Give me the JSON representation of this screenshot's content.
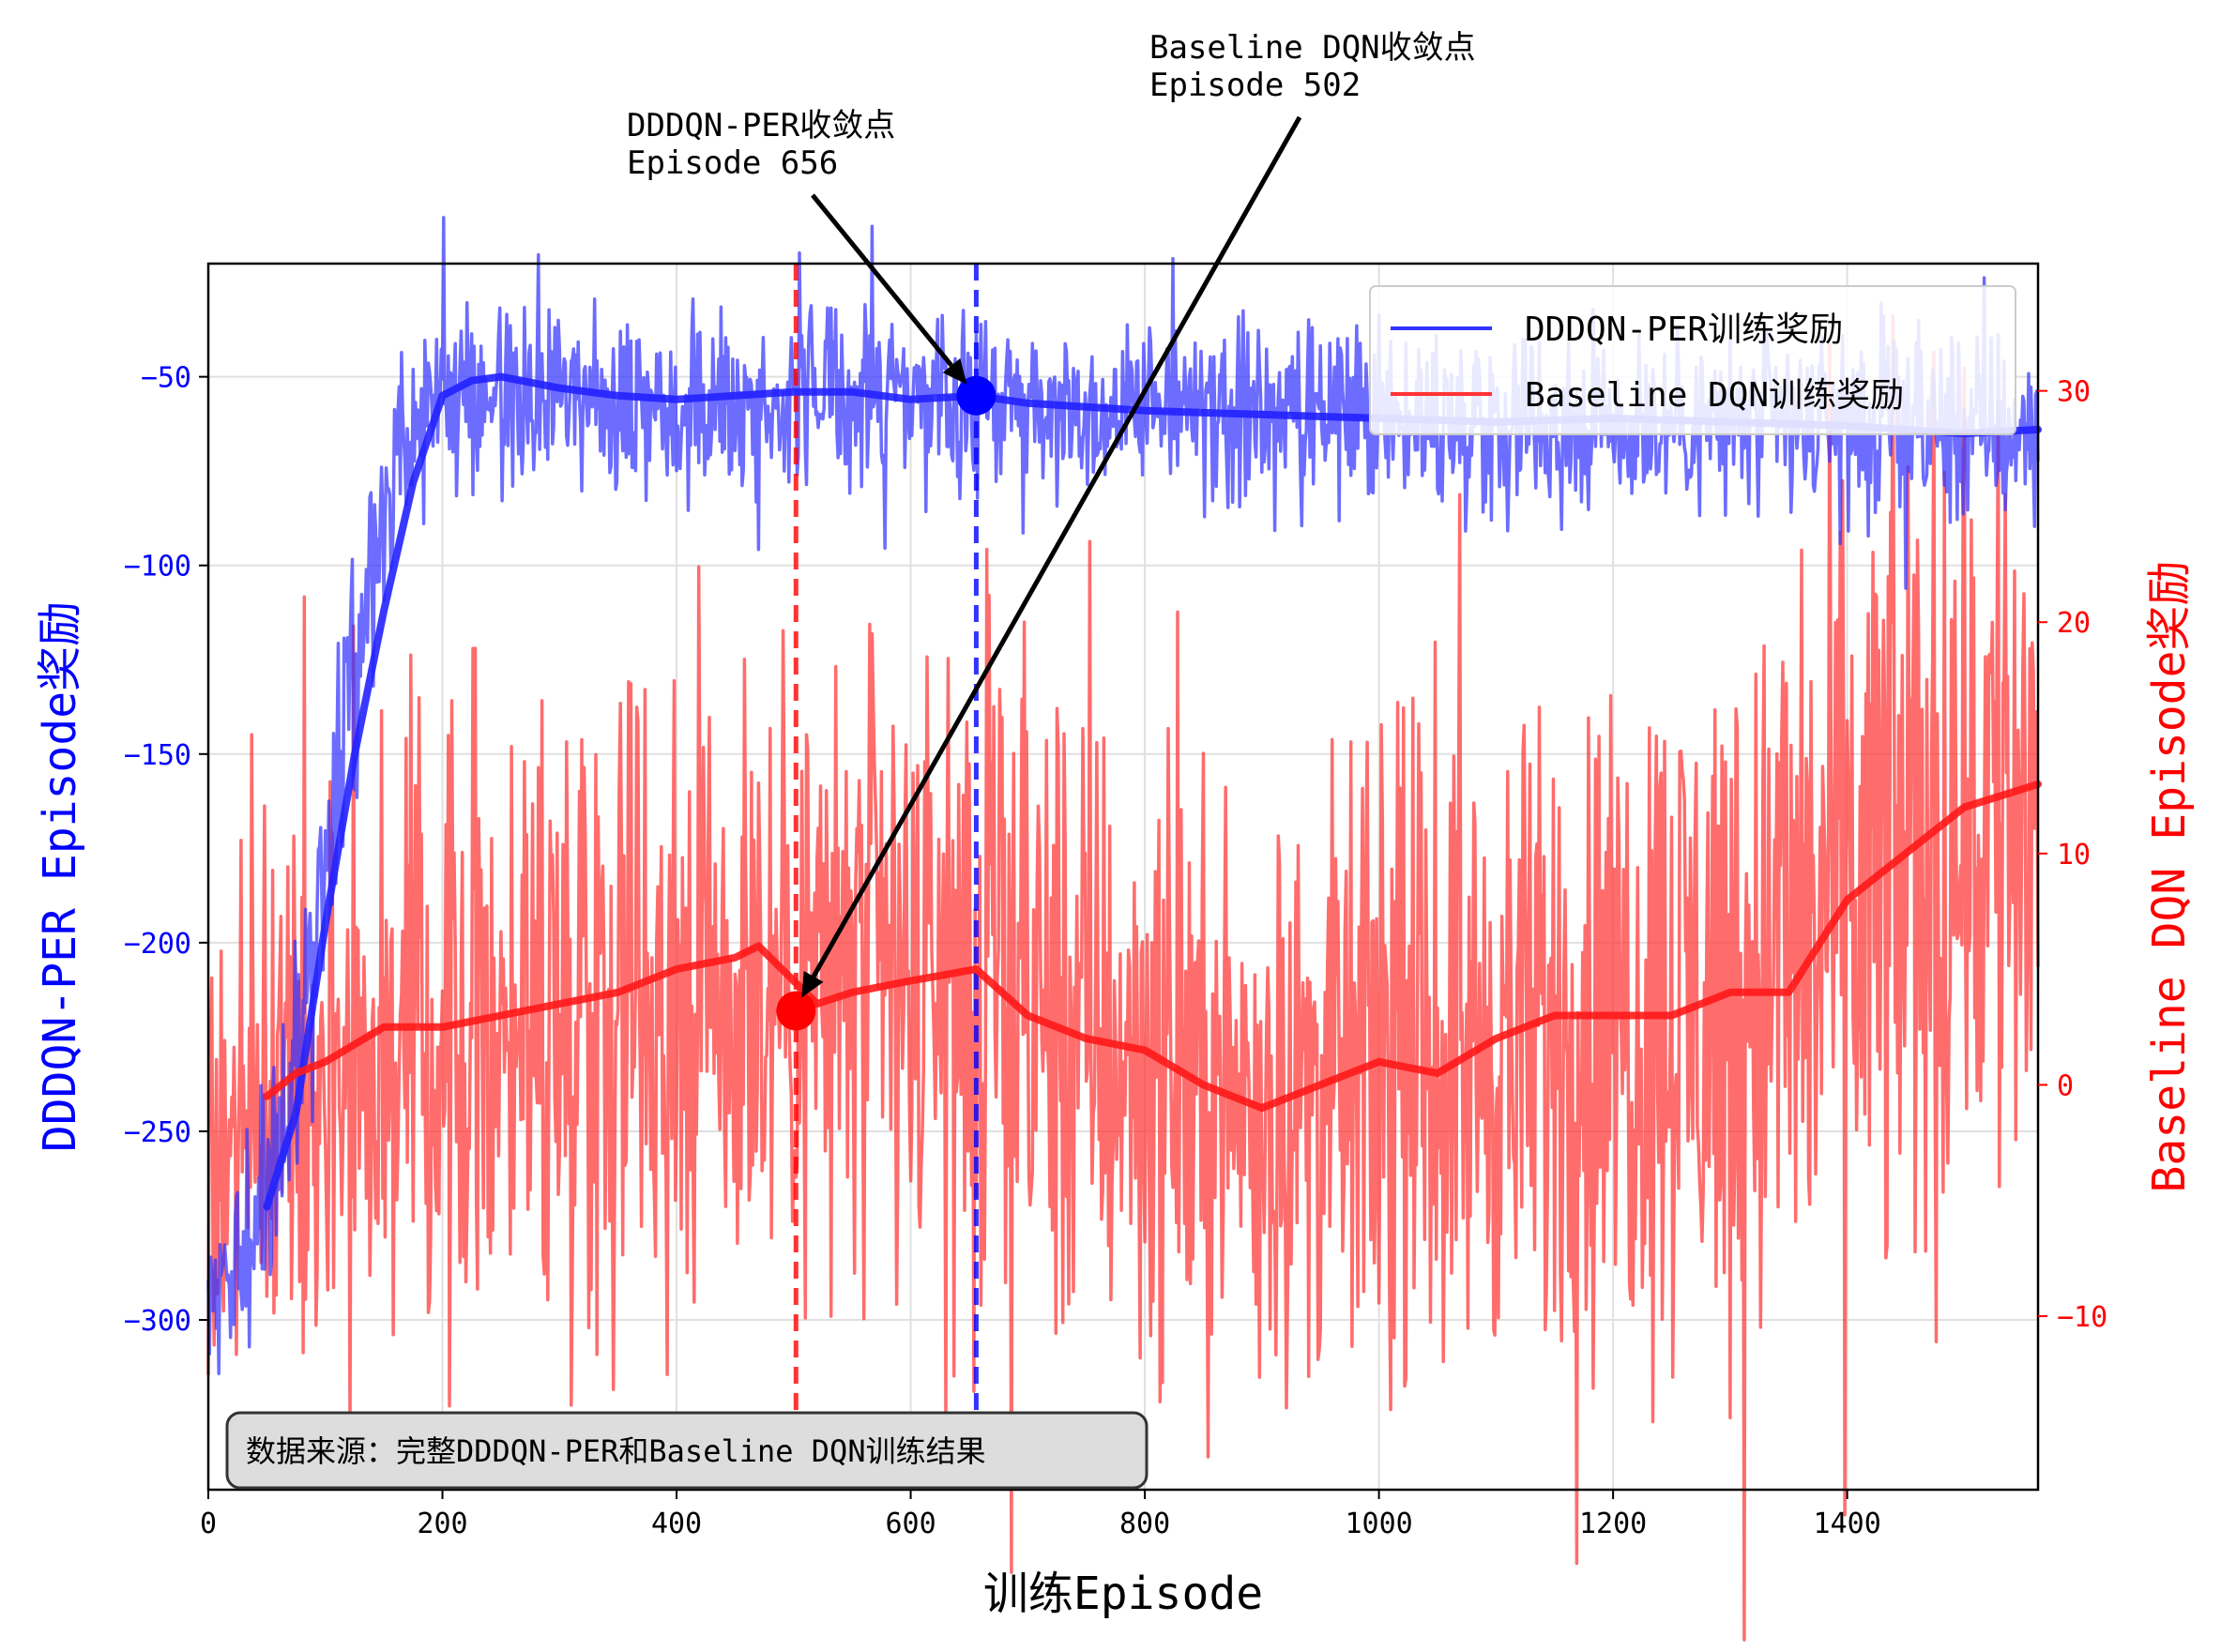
{
  "chart_data": {
    "type": "line",
    "xlabel": "训练Episode",
    "ylabel_left": "DDDQN-PER Episode奖励",
    "ylabel_right": "Baseline DQN Episode奖励",
    "xlim": [
      0,
      1563
    ],
    "ylim_left": [
      -345,
      -20
    ],
    "ylim_right": [
      -17.5,
      35.5
    ],
    "x_ticks": [
      0,
      200,
      400,
      600,
      800,
      1000,
      1200,
      1400
    ],
    "y_ticks_left": [
      -50,
      -100,
      -150,
      -200,
      -250,
      -300
    ],
    "y_ticks_right": [
      30,
      20,
      10,
      0,
      -10
    ],
    "y_tick_labels_left": [
      "−50",
      "−100",
      "−150",
      "−200",
      "−250",
      "−300"
    ],
    "y_tick_labels_right": [
      "30",
      "20",
      "10",
      "0",
      "−10"
    ],
    "grid": true,
    "legend_position": "upper-right",
    "colors": {
      "left": "#0000ff",
      "right": "#ff0000",
      "dddqn": "#3333ff",
      "baseline": "#ff3333"
    },
    "series": [
      {
        "name": "DDDQN-PER训练奖励",
        "axis": "left",
        "moving_average": {
          "x": [
            50,
            75,
            100,
            125,
            150,
            175,
            200,
            225,
            250,
            300,
            350,
            400,
            450,
            500,
            550,
            600,
            656,
            700,
            750,
            800,
            900,
            1000,
            1100,
            1200,
            1300,
            1400,
            1450,
            1500,
            1563
          ],
          "y": [
            -270,
            -245,
            -195,
            -150,
            -112,
            -78,
            -55,
            -51,
            -50,
            -53,
            -55,
            -56,
            -55,
            -54,
            -54,
            -56,
            -55,
            -57,
            -58,
            -59,
            -60,
            -61,
            -62,
            -61,
            -62,
            -63,
            -64,
            -65,
            -64
          ]
        },
        "raw_envelope": {
          "x": [
            0,
            25,
            50,
            75,
            100,
            125,
            150,
            175,
            200,
            300,
            400,
            500,
            600,
            700,
            800,
            900,
            1000,
            1100,
            1200,
            1300,
            1400,
            1500,
            1563
          ],
          "center": [
            -300,
            -285,
            -265,
            -230,
            -180,
            -125,
            -85,
            -60,
            -54,
            -56,
            -56,
            -55,
            -55,
            -57,
            -59,
            -60,
            -61,
            -62,
            -61,
            -62,
            -63,
            -64,
            -64
          ],
          "spread": [
            12,
            14,
            16,
            20,
            22,
            22,
            20,
            16,
            14,
            14,
            14,
            14,
            14,
            14,
            14,
            14,
            15,
            15,
            15,
            15,
            15,
            16,
            16
          ]
        }
      },
      {
        "name": "Baseline DQN训练奖励",
        "axis": "right",
        "moving_average": {
          "x": [
            50,
            75,
            100,
            150,
            200,
            250,
            300,
            350,
            400,
            450,
            470,
            500,
            520,
            550,
            600,
            656,
            700,
            750,
            800,
            850,
            900,
            950,
            1000,
            1050,
            1100,
            1150,
            1200,
            1250,
            1300,
            1350,
            1400,
            1450,
            1500,
            1563
          ],
          "y": [
            -0.5,
            0.5,
            1,
            2.5,
            2.5,
            3,
            3.5,
            4,
            5,
            5.5,
            6,
            4.5,
            3.5,
            4,
            4.5,
            5,
            3,
            2,
            1.5,
            0,
            -1,
            0,
            1,
            0.5,
            2,
            3,
            3,
            3,
            4,
            4,
            8,
            10,
            12,
            13
          ]
        },
        "raw_envelope": {
          "x": [
            0,
            100,
            200,
            300,
            400,
            500,
            600,
            700,
            800,
            900,
            1000,
            1100,
            1200,
            1300,
            1400,
            1500,
            1563
          ],
          "center": [
            -2,
            1,
            2.5,
            3.5,
            5,
            5,
            4.5,
            3.5,
            1,
            -1,
            1,
            1.5,
            3,
            4,
            8,
            12,
            13
          ],
          "spread": [
            7,
            7,
            8,
            9,
            9,
            9,
            9,
            9,
            8,
            7,
            8,
            8,
            9,
            10,
            11,
            12,
            12
          ]
        }
      }
    ],
    "convergence": {
      "dddqn": {
        "x": 656,
        "y": -55,
        "label_line1": "DDDQN-PER收敛点",
        "label_line2": "Episode 656"
      },
      "baseline": {
        "x": 502,
        "y": 3.2,
        "label_line1": "Baseline DQN收敛点",
        "label_line2": "Episode 502"
      }
    },
    "source_note": "数据来源：完整DDDQN-PER和Baseline DQN训练结果"
  }
}
